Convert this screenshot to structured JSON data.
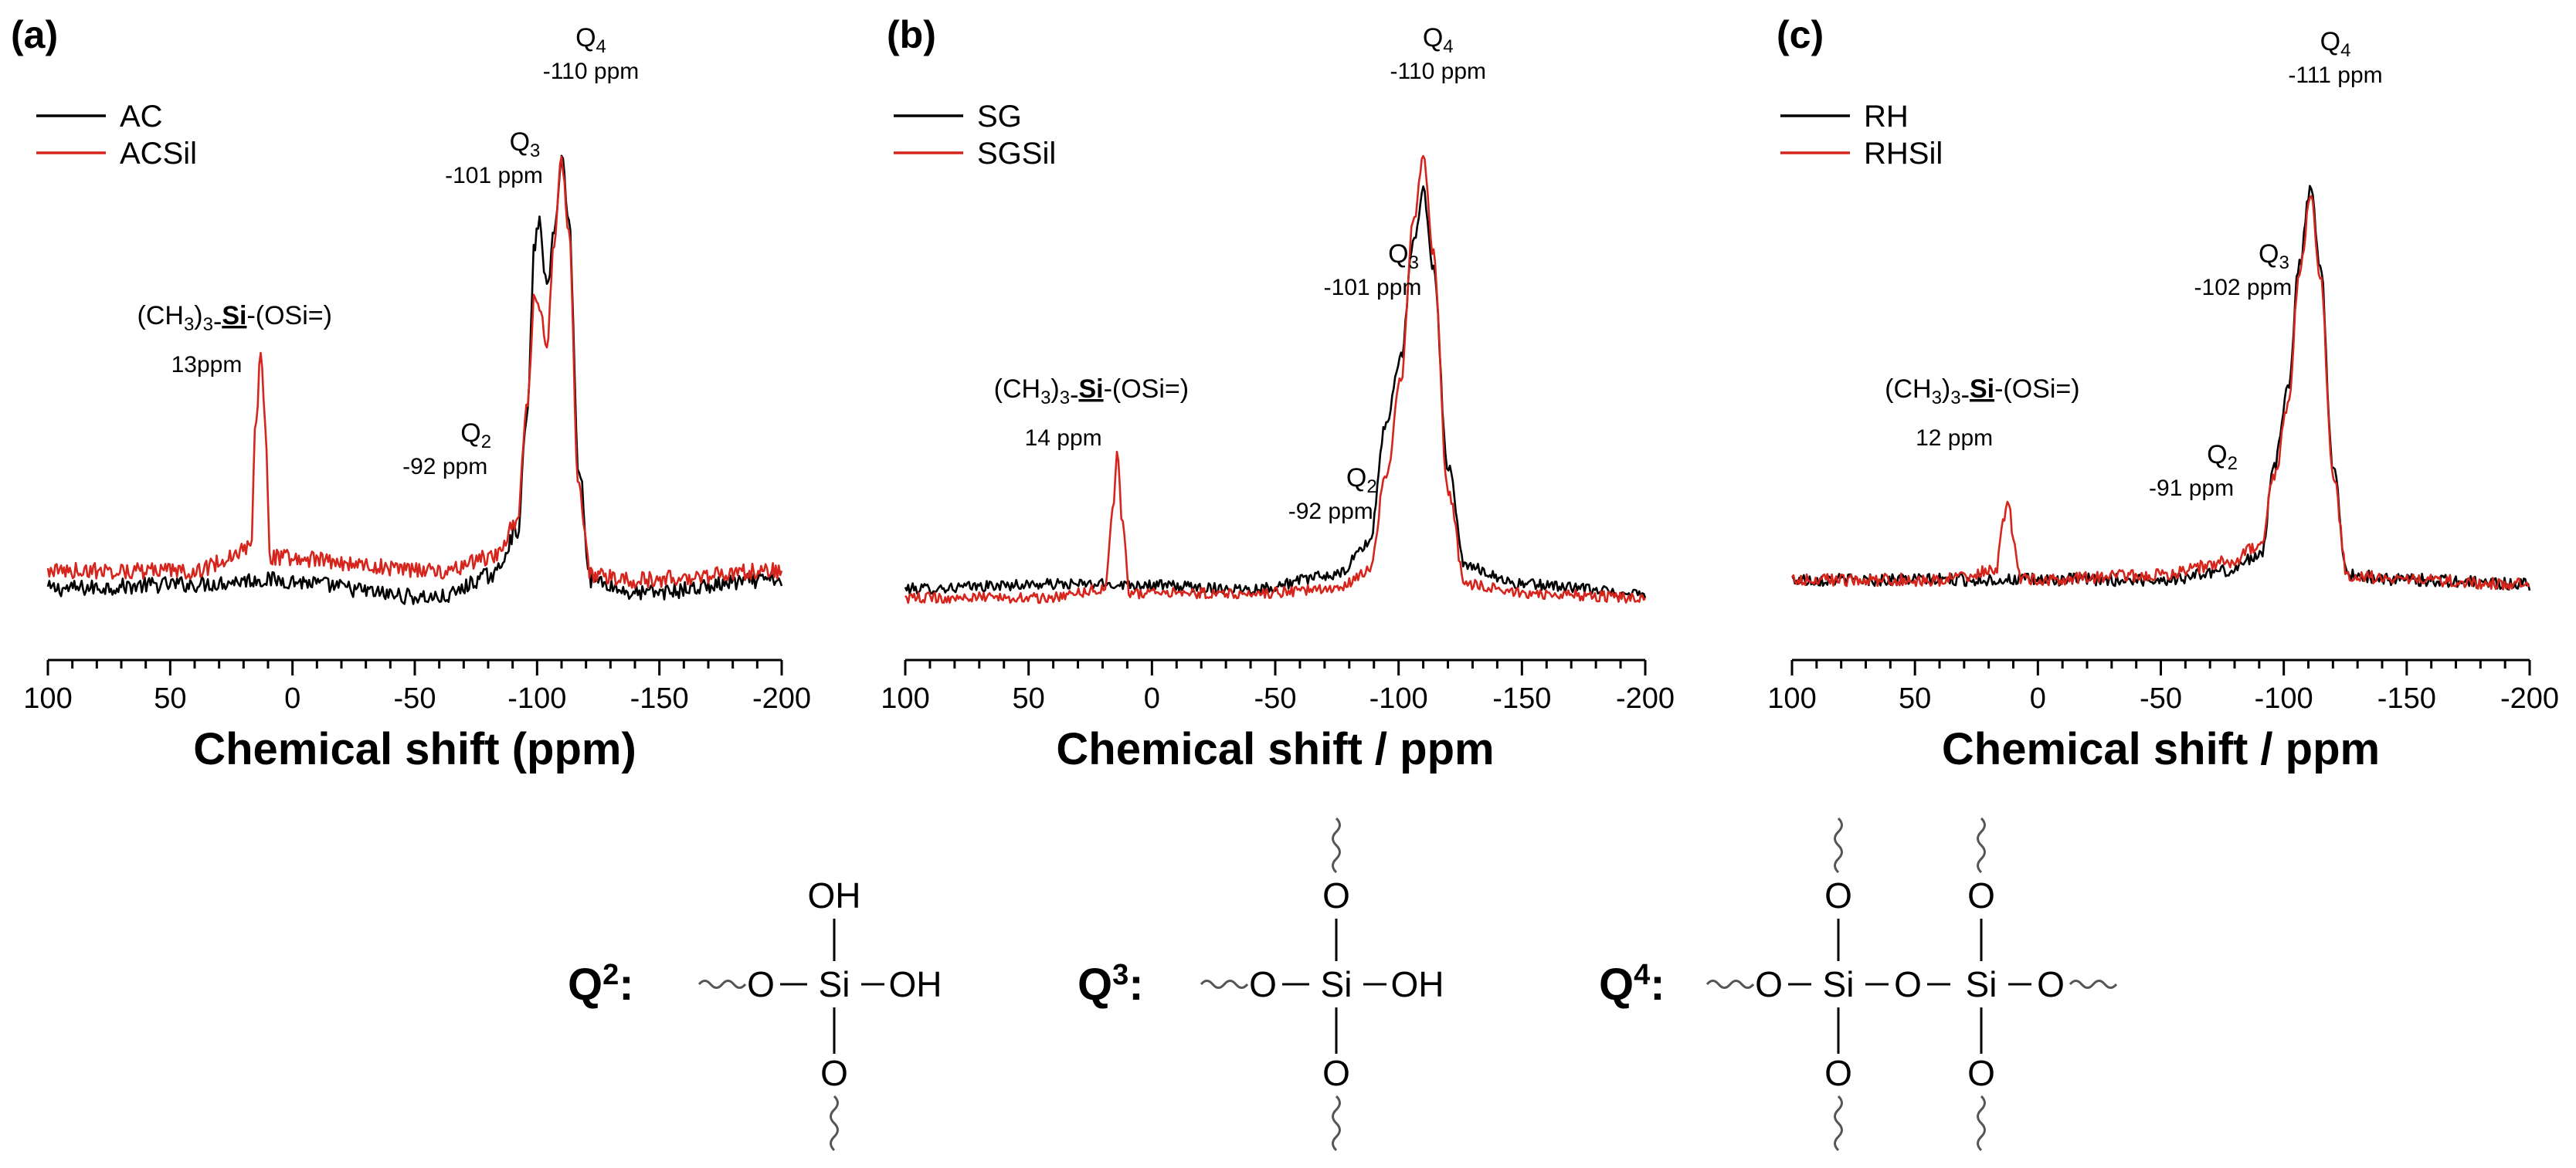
{
  "chart_data": [
    {
      "panel": "(a)",
      "type": "line",
      "xlabel": "Chemical shift (ppm)",
      "xlim": [
        100,
        -200
      ],
      "x_ticks": [
        100,
        50,
        0,
        -50,
        -100,
        -150,
        -200
      ],
      "ylim": [
        0,
        1
      ],
      "y_axis_shown": false,
      "legend_position": "top-left",
      "series": [
        {
          "name": "AC",
          "color": "#000000",
          "x": [
            100,
            40,
            13,
            -60,
            -82,
            -92,
            -96,
            -99,
            -101,
            -104,
            -107,
            -110,
            -113,
            -117,
            -122,
            -140,
            -200
          ],
          "y": [
            0.03,
            0.04,
            0.05,
            0.01,
            0.06,
            0.16,
            0.42,
            0.8,
            0.85,
            0.7,
            0.82,
            1.0,
            0.85,
            0.3,
            0.05,
            0.02,
            0.05
          ]
        },
        {
          "name": "ACSil",
          "color": "#d6251c",
          "x": [
            100,
            40,
            17,
            15,
            13,
            11,
            9,
            -60,
            -82,
            -92,
            -96,
            -99,
            -101,
            -104,
            -107,
            -110,
            -113,
            -117,
            -122,
            -140,
            -200
          ],
          "y": [
            0.07,
            0.07,
            0.12,
            0.4,
            0.56,
            0.38,
            0.1,
            0.07,
            0.1,
            0.18,
            0.45,
            0.68,
            0.66,
            0.58,
            0.8,
            0.98,
            0.82,
            0.25,
            0.06,
            0.05,
            0.07
          ]
        }
      ],
      "annotations": [
        {
          "label": "(CH3)3-Si-(OSi=)",
          "value": "13ppm",
          "x": 13
        },
        {
          "label": "Q2",
          "value": "-92 ppm",
          "x": -92
        },
        {
          "label": "Q3",
          "value": "-101 ppm",
          "x": -101
        },
        {
          "label": "Q4",
          "value": "-110 ppm",
          "x": -110
        }
      ]
    },
    {
      "panel": "(b)",
      "type": "line",
      "xlabel": "Chemical shift / ppm",
      "xlim": [
        100,
        -200
      ],
      "x_ticks": [
        100,
        50,
        0,
        -50,
        -100,
        -150,
        -200
      ],
      "ylim": [
        0,
        1
      ],
      "y_axis_shown": false,
      "legend_position": "top-left",
      "series": [
        {
          "name": "SG",
          "color": "#000000",
          "x": [
            100,
            40,
            14,
            -40,
            -75,
            -88,
            -95,
            -101,
            -106,
            -110,
            -114,
            -120,
            -127,
            -150,
            -200
          ],
          "y": [
            0.03,
            0.04,
            0.04,
            0.03,
            0.06,
            0.13,
            0.4,
            0.55,
            0.8,
            0.92,
            0.75,
            0.3,
            0.08,
            0.04,
            0.02
          ]
        },
        {
          "name": "SGSil",
          "color": "#d6251c",
          "x": [
            100,
            40,
            19,
            16,
            14,
            12,
            9,
            -40,
            -75,
            -88,
            -95,
            -101,
            -106,
            -110,
            -114,
            -120,
            -127,
            -150,
            -200
          ],
          "y": [
            0.01,
            0.01,
            0.03,
            0.2,
            0.33,
            0.18,
            0.02,
            0.02,
            0.03,
            0.07,
            0.28,
            0.5,
            0.85,
            1.0,
            0.78,
            0.25,
            0.04,
            0.02,
            0.01
          ]
        }
      ],
      "annotations": [
        {
          "label": "(CH3)3-Si-(OSi=)",
          "value": "14 ppm",
          "x": 14
        },
        {
          "label": "Q2",
          "value": "-92 ppm",
          "x": -92
        },
        {
          "label": "Q3",
          "value": "-101 ppm",
          "x": -101
        },
        {
          "label": "Q4",
          "value": "-110 ppm",
          "x": -110
        }
      ]
    },
    {
      "panel": "(c)",
      "type": "line",
      "xlabel": "Chemical shift / ppm",
      "xlim": [
        100,
        -200
      ],
      "x_ticks": [
        100,
        50,
        0,
        -50,
        -100,
        -150,
        -200
      ],
      "ylim": [
        0,
        1
      ],
      "y_axis_shown": false,
      "legend_position": "top-left",
      "series": [
        {
          "name": "RH",
          "color": "#000000",
          "x": [
            100,
            40,
            14,
            -50,
            -78,
            -91,
            -96,
            -102,
            -106,
            -111,
            -115,
            -120,
            -126,
            -150,
            -200
          ],
          "y": [
            0.05,
            0.05,
            0.05,
            0.05,
            0.07,
            0.11,
            0.3,
            0.48,
            0.75,
            0.92,
            0.75,
            0.3,
            0.06,
            0.05,
            0.04
          ]
        },
        {
          "name": "RHSil",
          "color": "#d6251c",
          "x": [
            100,
            40,
            17,
            14,
            12,
            10,
            7,
            -50,
            -78,
            -91,
            -96,
            -102,
            -106,
            -111,
            -115,
            -120,
            -126,
            -150,
            -200
          ],
          "y": [
            0.05,
            0.05,
            0.07,
            0.18,
            0.22,
            0.15,
            0.05,
            0.06,
            0.09,
            0.13,
            0.28,
            0.44,
            0.72,
            0.9,
            0.72,
            0.28,
            0.06,
            0.05,
            0.04
          ]
        }
      ],
      "annotations": [
        {
          "label": "(CH3)3-Si-(OSi=)",
          "value": "12 ppm",
          "x": 12
        },
        {
          "label": "Q2",
          "value": "-91 ppm",
          "x": -91
        },
        {
          "label": "Q3",
          "value": "-102 ppm",
          "x": -102
        },
        {
          "label": "Q4",
          "value": "-111 ppm",
          "x": -111
        }
      ]
    }
  ],
  "structures": [
    {
      "label": "Q",
      "sup": "2",
      "colon": ":",
      "atoms": {
        "si": "Si",
        "o": "O",
        "oh": "OH"
      }
    },
    {
      "label": "Q",
      "sup": "3",
      "colon": ":",
      "atoms": {
        "si": "Si",
        "o": "O",
        "oh": "OH"
      }
    },
    {
      "label": "Q",
      "sup": "4",
      "colon": ":",
      "atoms": {
        "si": "Si",
        "o": "O"
      }
    }
  ]
}
